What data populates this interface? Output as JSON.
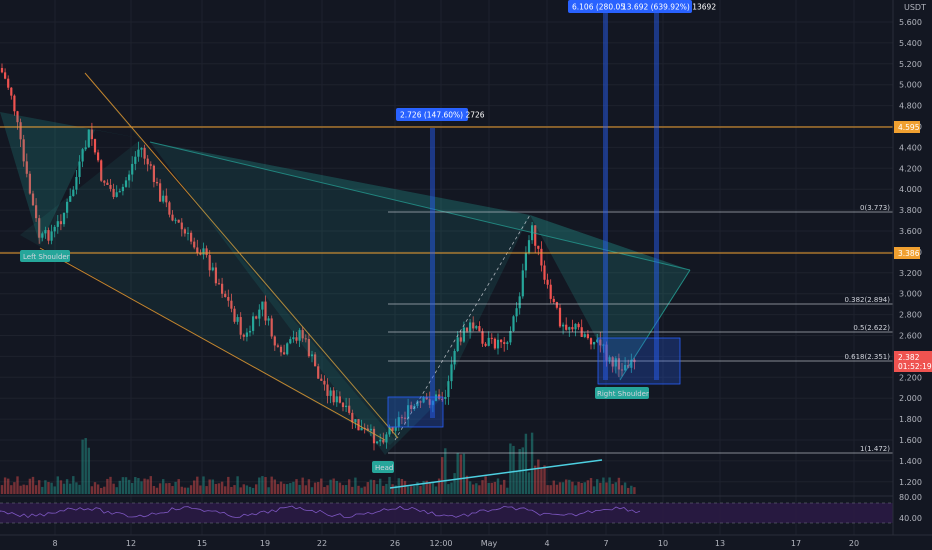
{
  "axis": {
    "currency": "USDT",
    "y_ticks": [
      "5.600",
      "5.400",
      "5.200",
      "5.000",
      "4.800",
      "4.600",
      "4.400",
      "4.200",
      "4.000",
      "3.800",
      "3.600",
      "3.400",
      "3.200",
      "3.000",
      "2.800",
      "2.600",
      "2.400",
      "2.200",
      "2.000",
      "1.800",
      "1.600",
      "1.400",
      "1.200"
    ],
    "x_ticks": [
      "8",
      "12",
      "15",
      "19",
      "22",
      "26",
      "12:00",
      "May",
      "4",
      "7",
      "10",
      "13",
      "17",
      "20"
    ],
    "rsi_ticks": [
      "80.00",
      "40.00"
    ]
  },
  "price_tags": {
    "resistance_1": {
      "text": "4.595",
      "color": "#f0a030"
    },
    "resistance_2": {
      "text": "3.386",
      "color": "#f0a030"
    },
    "current_price": {
      "text": "2.382",
      "color": "#ef5350"
    },
    "countdown": "01:52:19"
  },
  "pattern_labels": {
    "left_shoulder": "Left Shoulder",
    "head": "Head",
    "right_shoulder": "Right Shoulder"
  },
  "measurements": {
    "first": "2.726 (147.60%) 2726",
    "second_a": "6.106 (280.05",
    "second_b": "13.692 (639.92%) 13692"
  },
  "fib_levels": [
    {
      "label": "0(3.773)",
      "value": 3.773
    },
    {
      "label": "0.382(2.894)",
      "value": 2.894
    },
    {
      "label": "0.5(2.622)",
      "value": 2.622
    },
    {
      "label": "0.618(2.351)",
      "value": 2.351
    },
    {
      "label": "1(1.472)",
      "value": 1.472
    }
  ],
  "colors": {
    "background": "#131722",
    "grid": "#1e222d",
    "up": "#26a69a",
    "down": "#ef5350",
    "trend": "#f0a030",
    "measure": "#2962ff",
    "rsi_band": "#2a1a44",
    "rsi_line": "#7e57c2"
  }
}
